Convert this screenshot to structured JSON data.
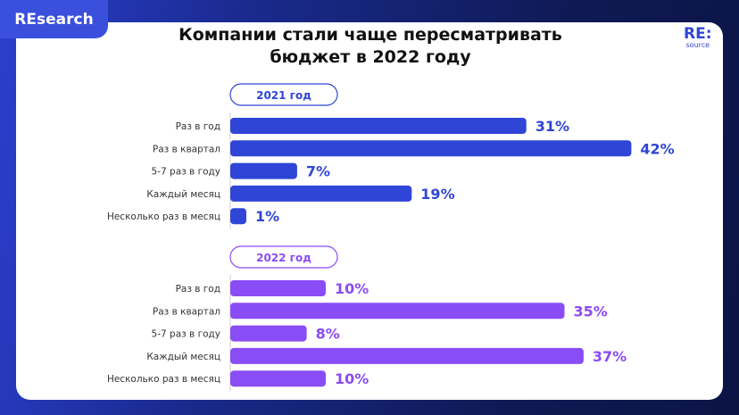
{
  "brand_tag": "REsearch",
  "logo": {
    "main": "RE:",
    "sub": "source"
  },
  "chart_data": {
    "type": "bar",
    "orientation": "horizontal",
    "title": "Компании стали чаще пересматривать бюджет в 2022 году",
    "categories": [
      "Раз в год",
      "Раз в квартал",
      "5-7 раз в году",
      "Каждый месяц",
      "Несколько раз в месяц"
    ],
    "series": [
      {
        "name": "2021 год",
        "values": [
          31,
          42,
          7,
          19,
          1
        ],
        "labels": [
          "31%",
          "42%",
          "7%",
          "19%",
          "1%"
        ],
        "color": "#2f45d6"
      },
      {
        "name": "2022 год",
        "values": [
          10,
          35,
          8,
          37,
          10
        ],
        "labels": [
          "10%",
          "35%",
          "8%",
          "37%",
          "10%"
        ],
        "color": "#8a4cf5"
      }
    ],
    "unit": "%",
    "grid": false
  }
}
